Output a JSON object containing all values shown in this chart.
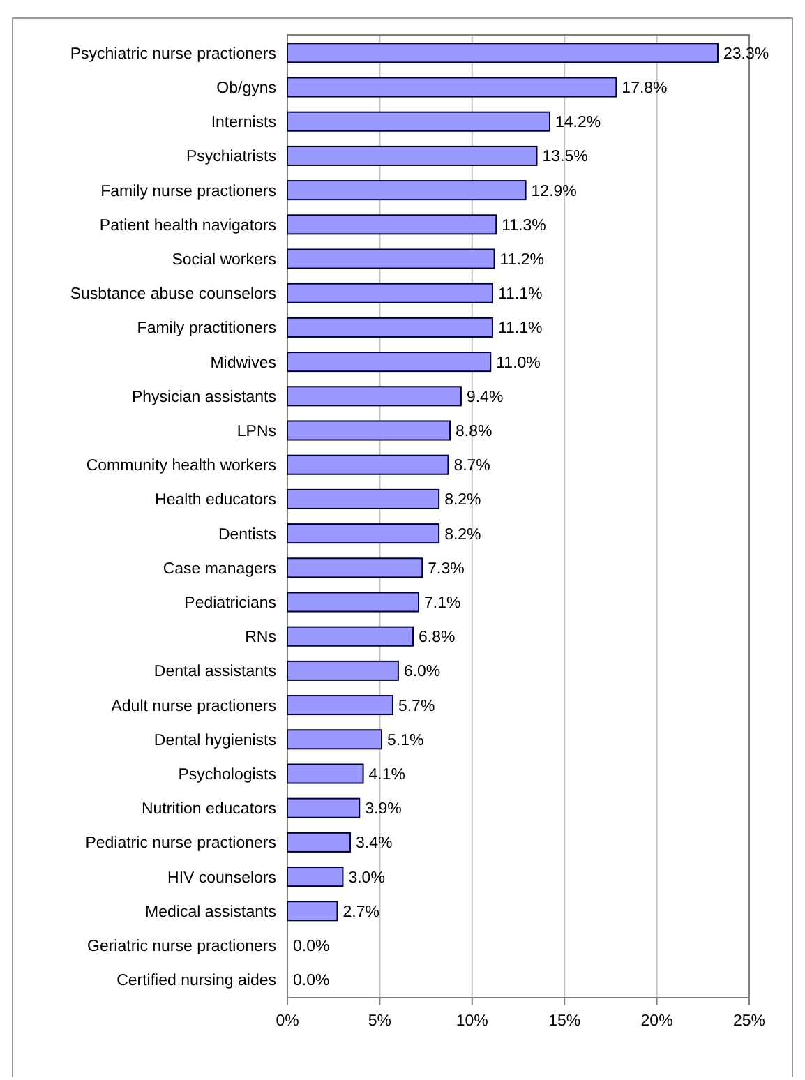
{
  "chart_data": {
    "type": "bar",
    "orientation": "horizontal",
    "categories": [
      "Psychiatric nurse practioners",
      "Ob/gyns",
      "Internists",
      "Psychiatrists",
      "Family nurse practioners",
      "Patient health navigators",
      "Social workers",
      "Susbtance abuse counselors",
      "Family practitioners",
      "Midwives",
      "Physician assistants",
      "LPNs",
      "Community health workers",
      "Health educators",
      "Dentists",
      "Case managers",
      "Pediatricians",
      "RNs",
      "Dental assistants",
      "Adult nurse practioners",
      "Dental hygienists",
      "Psychologists",
      "Nutrition educators",
      "Pediatric nurse practioners",
      "HIV counselors",
      "Medical assistants",
      "Geriatric nurse practioners",
      "Certified nursing aides"
    ],
    "values": [
      23.3,
      17.8,
      14.2,
      13.5,
      12.9,
      11.3,
      11.2,
      11.1,
      11.1,
      11.0,
      9.4,
      8.8,
      8.7,
      8.2,
      8.2,
      7.3,
      7.1,
      6.8,
      6.0,
      5.7,
      5.1,
      4.1,
      3.9,
      3.4,
      3.0,
      2.7,
      0.0,
      0.0
    ],
    "value_labels": [
      "23.3%",
      "17.8%",
      "14.2%",
      "13.5%",
      "12.9%",
      "11.3%",
      "11.2%",
      "11.1%",
      "11.1%",
      "11.0%",
      "9.4%",
      "8.8%",
      "8.7%",
      "8.2%",
      "8.2%",
      "7.3%",
      "7.1%",
      "6.8%",
      "6.0%",
      "5.7%",
      "5.1%",
      "4.1%",
      "3.9%",
      "3.4%",
      "3.0%",
      "2.7%",
      "0.0%",
      "0.0%"
    ],
    "color": "#9999ff",
    "xlim": [
      0,
      25
    ],
    "xticks": [
      {
        "value": 0,
        "label": "0%"
      },
      {
        "value": 5,
        "label": "5%"
      },
      {
        "value": 10,
        "label": "10%"
      },
      {
        "value": 15,
        "label": "15%"
      },
      {
        "value": 20,
        "label": "20%"
      },
      {
        "value": 25,
        "label": "25%"
      }
    ],
    "grid": "x"
  }
}
